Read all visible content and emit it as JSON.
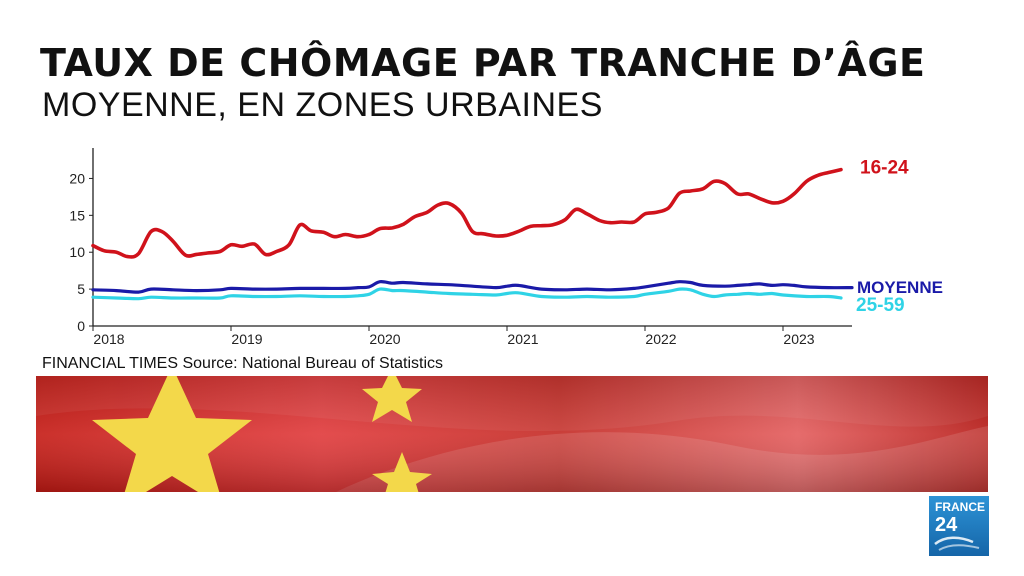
{
  "header": {
    "title": "TAUX DE CHÔMAGE PAR TRANCHE D’ÂGE",
    "subtitle": "MOYENNE, EN ZONES URBAINES"
  },
  "source": "FINANCIAL TIMES Source: National Bureau of Statistics",
  "logo": {
    "line1": "FRANCE",
    "line2": "24",
    "icon": "france24-logo"
  },
  "banner": {
    "icon": "china-flag"
  },
  "colors": {
    "red": "#d0121b",
    "navy": "#1a1aa8",
    "cyan": "#2fd3e6",
    "flag_red": "#de2910",
    "flag_yellow": "#f3d84a",
    "logo_blue": "#1f7fc0"
  },
  "chart_data": {
    "type": "line",
    "xlim": [
      2018.0,
      2023.5
    ],
    "ylim": [
      0,
      22.5
    ],
    "yticks": [
      0,
      5,
      10,
      15,
      20
    ],
    "xticks": [
      {
        "value": 2018,
        "label": "2018"
      },
      {
        "value": 2019,
        "label": "2019"
      },
      {
        "value": 2020,
        "label": "2020"
      },
      {
        "value": 2021,
        "label": "2021"
      },
      {
        "value": 2022,
        "label": "2022"
      },
      {
        "value": 2023,
        "label": "2023"
      }
    ],
    "grid": false,
    "series": [
      {
        "name": "16-24",
        "color": "#d0121b",
        "points": [
          [
            2018.0,
            10.9
          ],
          [
            2018.08,
            10.2
          ],
          [
            2018.17,
            10.0
          ],
          [
            2018.25,
            9.4
          ],
          [
            2018.33,
            9.8
          ],
          [
            2018.42,
            12.8
          ],
          [
            2018.5,
            12.8
          ],
          [
            2018.58,
            11.5
          ],
          [
            2018.67,
            9.6
          ],
          [
            2018.75,
            9.7
          ],
          [
            2018.83,
            9.9
          ],
          [
            2018.92,
            10.1
          ],
          [
            2019.0,
            11.0
          ],
          [
            2019.08,
            10.8
          ],
          [
            2019.17,
            11.1
          ],
          [
            2019.25,
            9.7
          ],
          [
            2019.33,
            10.1
          ],
          [
            2019.42,
            11.0
          ],
          [
            2019.5,
            13.7
          ],
          [
            2019.58,
            12.9
          ],
          [
            2019.67,
            12.7
          ],
          [
            2019.75,
            12.1
          ],
          [
            2019.83,
            12.4
          ],
          [
            2019.92,
            12.1
          ],
          [
            2020.0,
            12.4
          ],
          [
            2020.08,
            13.2
          ],
          [
            2020.17,
            13.3
          ],
          [
            2020.25,
            13.8
          ],
          [
            2020.33,
            14.8
          ],
          [
            2020.42,
            15.4
          ],
          [
            2020.5,
            16.4
          ],
          [
            2020.58,
            16.6
          ],
          [
            2020.67,
            15.3
          ],
          [
            2020.75,
            12.8
          ],
          [
            2020.83,
            12.5
          ],
          [
            2020.92,
            12.2
          ],
          [
            2021.0,
            12.3
          ],
          [
            2021.08,
            12.8
          ],
          [
            2021.17,
            13.5
          ],
          [
            2021.25,
            13.6
          ],
          [
            2021.33,
            13.7
          ],
          [
            2021.42,
            14.4
          ],
          [
            2021.5,
            15.8
          ],
          [
            2021.58,
            15.2
          ],
          [
            2021.67,
            14.3
          ],
          [
            2021.75,
            14.0
          ],
          [
            2021.83,
            14.1
          ],
          [
            2021.92,
            14.1
          ],
          [
            2022.0,
            15.2
          ],
          [
            2022.08,
            15.4
          ],
          [
            2022.17,
            16.0
          ],
          [
            2022.25,
            18.0
          ],
          [
            2022.33,
            18.3
          ],
          [
            2022.42,
            18.6
          ],
          [
            2022.5,
            19.6
          ],
          [
            2022.58,
            19.3
          ],
          [
            2022.67,
            17.9
          ],
          [
            2022.75,
            17.9
          ],
          [
            2022.83,
            17.3
          ],
          [
            2022.92,
            16.7
          ],
          [
            2023.0,
            16.9
          ],
          [
            2023.08,
            17.9
          ],
          [
            2023.17,
            19.6
          ],
          [
            2023.25,
            20.4
          ],
          [
            2023.33,
            20.8
          ],
          [
            2023.42,
            21.2
          ]
        ]
      },
      {
        "name": "MOYENNE",
        "color": "#1a1aa8",
        "points": [
          [
            2018.0,
            4.9
          ],
          [
            2018.17,
            4.8
          ],
          [
            2018.33,
            4.6
          ],
          [
            2018.42,
            5.0
          ],
          [
            2018.58,
            4.9
          ],
          [
            2018.75,
            4.8
          ],
          [
            2018.92,
            4.9
          ],
          [
            2019.0,
            5.1
          ],
          [
            2019.17,
            5.0
          ],
          [
            2019.33,
            5.0
          ],
          [
            2019.5,
            5.1
          ],
          [
            2019.67,
            5.1
          ],
          [
            2019.83,
            5.1
          ],
          [
            2019.92,
            5.2
          ],
          [
            2020.0,
            5.3
          ],
          [
            2020.08,
            6.0
          ],
          [
            2020.17,
            5.8
          ],
          [
            2020.25,
            5.9
          ],
          [
            2020.42,
            5.7
          ],
          [
            2020.58,
            5.6
          ],
          [
            2020.75,
            5.4
          ],
          [
            2020.92,
            5.2
          ],
          [
            2021.0,
            5.4
          ],
          [
            2021.08,
            5.5
          ],
          [
            2021.25,
            5.0
          ],
          [
            2021.42,
            4.9
          ],
          [
            2021.58,
            5.0
          ],
          [
            2021.75,
            4.9
          ],
          [
            2021.92,
            5.1
          ],
          [
            2022.0,
            5.3
          ],
          [
            2022.17,
            5.8
          ],
          [
            2022.25,
            6.0
          ],
          [
            2022.33,
            5.9
          ],
          [
            2022.42,
            5.5
          ],
          [
            2022.58,
            5.4
          ],
          [
            2022.67,
            5.5
          ],
          [
            2022.75,
            5.6
          ],
          [
            2022.83,
            5.7
          ],
          [
            2022.92,
            5.5
          ],
          [
            2023.0,
            5.6
          ],
          [
            2023.08,
            5.5
          ],
          [
            2023.17,
            5.3
          ],
          [
            2023.33,
            5.2
          ],
          [
            2023.5,
            5.2
          ]
        ]
      },
      {
        "name": "25-59",
        "color": "#2fd3e6",
        "points": [
          [
            2018.0,
            3.9
          ],
          [
            2018.17,
            3.8
          ],
          [
            2018.33,
            3.7
          ],
          [
            2018.42,
            3.9
          ],
          [
            2018.58,
            3.8
          ],
          [
            2018.75,
            3.8
          ],
          [
            2018.92,
            3.8
          ],
          [
            2019.0,
            4.1
          ],
          [
            2019.17,
            4.0
          ],
          [
            2019.33,
            4.0
          ],
          [
            2019.5,
            4.1
          ],
          [
            2019.67,
            4.0
          ],
          [
            2019.83,
            4.0
          ],
          [
            2019.92,
            4.1
          ],
          [
            2020.0,
            4.3
          ],
          [
            2020.08,
            5.0
          ],
          [
            2020.17,
            4.8
          ],
          [
            2020.25,
            4.8
          ],
          [
            2020.42,
            4.6
          ],
          [
            2020.58,
            4.4
          ],
          [
            2020.75,
            4.3
          ],
          [
            2020.92,
            4.2
          ],
          [
            2021.0,
            4.4
          ],
          [
            2021.08,
            4.5
          ],
          [
            2021.25,
            4.0
          ],
          [
            2021.42,
            3.9
          ],
          [
            2021.58,
            4.0
          ],
          [
            2021.75,
            3.9
          ],
          [
            2021.92,
            4.0
          ],
          [
            2022.0,
            4.3
          ],
          [
            2022.17,
            4.7
          ],
          [
            2022.25,
            5.0
          ],
          [
            2022.33,
            4.9
          ],
          [
            2022.42,
            4.3
          ],
          [
            2022.5,
            4.0
          ],
          [
            2022.58,
            4.2
          ],
          [
            2022.67,
            4.3
          ],
          [
            2022.75,
            4.4
          ],
          [
            2022.83,
            4.3
          ],
          [
            2022.92,
            4.4
          ],
          [
            2023.0,
            4.2
          ],
          [
            2023.17,
            4.0
          ],
          [
            2023.33,
            4.0
          ],
          [
            2023.42,
            3.8
          ]
        ]
      }
    ]
  }
}
